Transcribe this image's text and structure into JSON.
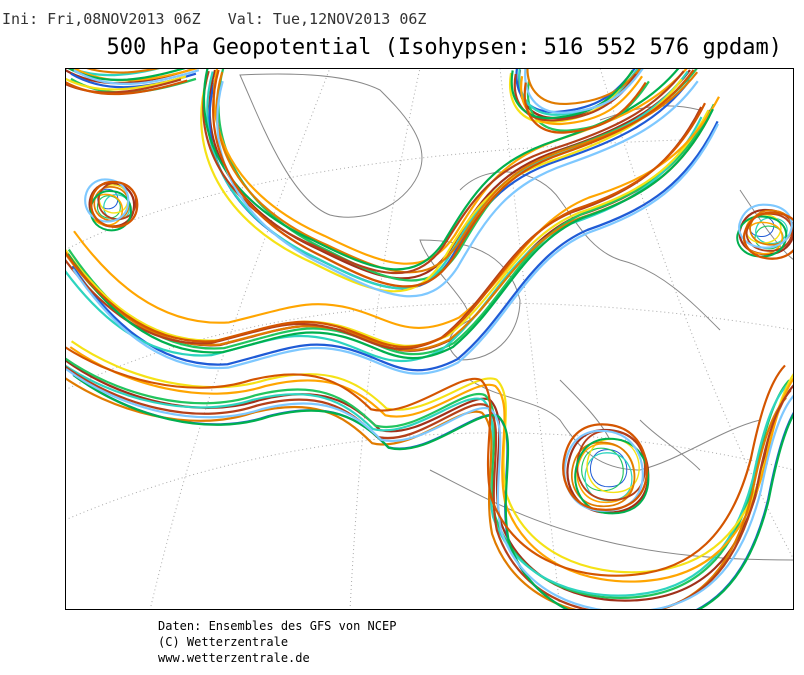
{
  "header": {
    "run": "Ini: Fri,08NOV2013 06Z   Val: Tue,12NOV2013 06Z",
    "title": "500 hPa Geopotential (Isohypsen: 516 552 576 gpdam)"
  },
  "footer": {
    "lines": [
      "Daten: Ensembles des GFS von NCEP",
      "(C) Wetterzentrale",
      "www.wetterzentrale.de"
    ]
  }
}
